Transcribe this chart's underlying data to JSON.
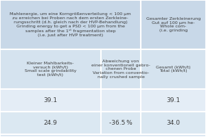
{
  "header_bg": "#c8d8e8",
  "subheader_bg": "#d5e3ef",
  "row1_bg": "#e4edf6",
  "row2_bg": "#dbe8f2",
  "col1_header_de": "Mahlenergie, um eine Korngrößenverteilung < 100 µm\nzu erreichen bei Proben nach dem ersten Zerkleine-\nrungsschritt (d.h. gleich nach der HVP-Behandlung)",
  "col1_header_en": "Grinding energy to get a PSD < 100 µm from the\nsamples after the 1ˢᵗ fragmentation step\n(i.e. just after HVP treatment)",
  "col3_header_de": "Gesamter Zerkleinerung",
  "col3_header_en_1": "Gut auf 100 µm he-",
  "col3_header_en_2": "Whole com-",
  "col3_header_en_3": "(i.e. grinding",
  "subheader_col1_de": "Kleiner Mahlbarkeits-\nversuch (kWh/t)",
  "subheader_col1_en": "Small scale grindability\ntest (kWh/t)",
  "subheader_col2_line1": "Abweichung von",
  "subheader_col2_line2": "einer konventionell gebro-",
  "subheader_col2_line3": "chenen Probe",
  "subheader_col2_line4": "Variation from conventio-",
  "subheader_col2_line5": "nally crushed sample",
  "subheader_col3_de": "Gesamt (kWh/t)",
  "subheader_col3_en": "Total (kWh/t)",
  "row1_col1": "39.1",
  "row1_col2": "",
  "row1_col3": "39.1",
  "row2_col1": "24.9",
  "row2_col2": "-36.5 %",
  "row2_col3": "34.0",
  "text_color": "#3a3a3a",
  "border_color": "#ffffff",
  "figsize": [
    3.0,
    2.0
  ],
  "dpi": 100
}
